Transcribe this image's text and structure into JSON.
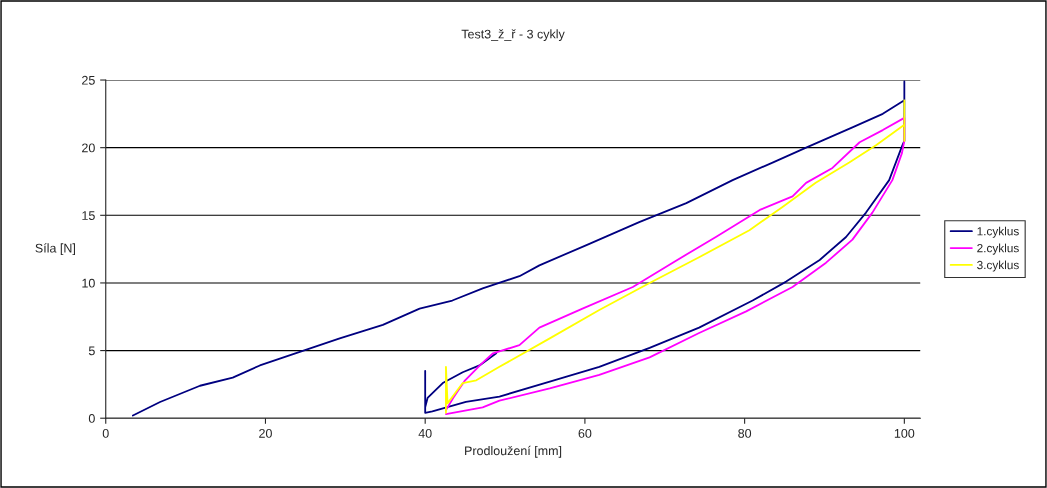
{
  "chart_data": {
    "type": "line",
    "title": "Test3_ž_ř - 3 cykly",
    "xlabel": "Prodloužení [mm]",
    "ylabel": "Síla [N]",
    "xlim": [
      0,
      102
    ],
    "xticks": [
      0,
      20,
      40,
      60,
      80,
      100
    ],
    "ylim": [
      0,
      25
    ],
    "yticks": [
      0,
      5,
      10,
      15,
      20,
      25
    ],
    "grid": "y",
    "legend": "right",
    "marker": "none",
    "line_style": "solid",
    "series": [
      {
        "name": "1.cyklus",
        "color": "#000080",
        "x": [
          3.4,
          6.8,
          11.8,
          15.9,
          19.3,
          24.3,
          29.3,
          34.7,
          39.3,
          43.4,
          47.2,
          51.8,
          54.3,
          60.2,
          66.8,
          72.7,
          78.5,
          83.5,
          87.7,
          93.5,
          97.3,
          100,
          100,
          100,
          99.7,
          98.1,
          95.2,
          92.7,
          89.4,
          85.2,
          81.0,
          74.3,
          68.1,
          61.8,
          55.6,
          49.3,
          45.1,
          40.9,
          40.0,
          40.0,
          40.0,
          40.3,
          42.2,
          44.7,
          46.8,
          48.9
        ],
        "values": [
          0.2,
          1.2,
          2.4,
          3.0,
          3.9,
          4.9,
          5.9,
          6.9,
          8.1,
          8.7,
          9.6,
          10.5,
          11.3,
          12.8,
          14.5,
          15.9,
          17.6,
          18.9,
          20.0,
          21.5,
          22.5,
          23.5,
          24.9,
          20.5,
          20.1,
          17.6,
          15.2,
          13.4,
          11.7,
          10.1,
          8.7,
          6.7,
          5.2,
          3.8,
          2.7,
          1.6,
          1.2,
          0.5,
          0.4,
          3.5,
          0.8,
          1.5,
          2.6,
          3.4,
          3.9,
          4.8
        ]
      },
      {
        "name": "2.cyklus",
        "color": "#ff00ff",
        "x": [
          42.6,
          43.5,
          45.0,
          47.0,
          48.5,
          51.8,
          54.3,
          59.7,
          66.0,
          71.0,
          76.4,
          81.9,
          86.0,
          87.7,
          91.0,
          94.4,
          97.3,
          100,
          100,
          99.7,
          98.5,
          96.0,
          93.5,
          90.2,
          86.0,
          80.2,
          74.3,
          68.1,
          61.8,
          55.6,
          49.3,
          47.2,
          42.6
        ],
        "values": [
          0.6,
          1.5,
          2.8,
          4.0,
          4.8,
          5.4,
          6.7,
          8.1,
          9.7,
          11.5,
          13.4,
          15.4,
          16.4,
          17.4,
          18.5,
          20.4,
          21.3,
          22.2,
          20.5,
          19.6,
          17.6,
          15.2,
          13.2,
          11.5,
          9.7,
          7.9,
          6.3,
          4.5,
          3.2,
          2.2,
          1.3,
          0.8,
          0.3
        ]
      },
      {
        "name": "3.cyklus",
        "color": "#ffff00",
        "x": [
          42.6,
          42.6,
          42.8,
          44.7,
          46.4,
          49.3,
          55.6,
          61.8,
          68.1,
          74.3,
          80.6,
          84.7,
          88.9,
          93.1,
          96.5,
          100,
          100,
          100
        ],
        "values": [
          0.4,
          3.8,
          1.1,
          2.6,
          2.8,
          3.8,
          5.9,
          8.0,
          10.0,
          11.9,
          13.9,
          15.6,
          17.4,
          18.9,
          20.2,
          21.7,
          23.5,
          20.5
        ]
      }
    ]
  }
}
